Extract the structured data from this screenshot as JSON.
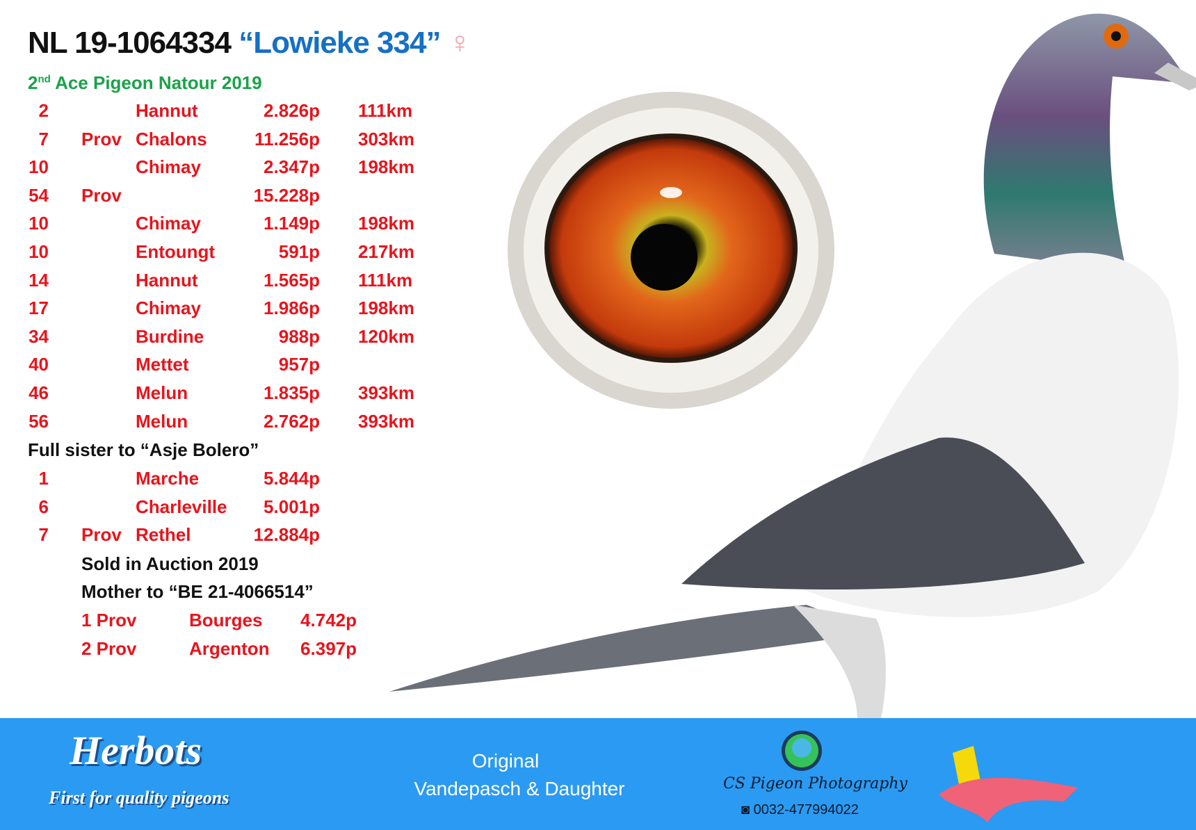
{
  "title": {
    "ring": "NL 19-1064334",
    "nickname": "“Lowieke 334”",
    "sex_symbol": "♀"
  },
  "subtitle": {
    "rank": "2",
    "rank_suffix": "nd",
    "text": "Ace Pigeon Natour 2019"
  },
  "results": [
    {
      "rank": "2",
      "level": "",
      "place": "Hannut",
      "points": "2.826p",
      "distance": "111km"
    },
    {
      "rank": "7",
      "level": "Prov",
      "place": "Chalons",
      "points": "11.256p",
      "distance": "303km"
    },
    {
      "rank": "10",
      "level": "",
      "place": "Chimay",
      "points": "2.347p",
      "distance": "198km"
    },
    {
      "rank": "54",
      "level": "Prov",
      "place": "",
      "points": "15.228p",
      "distance": ""
    },
    {
      "rank": "10",
      "level": "",
      "place": "Chimay",
      "points": "1.149p",
      "distance": "198km"
    },
    {
      "rank": "10",
      "level": "",
      "place": "Entoungt",
      "points": "591p",
      "distance": "217km"
    },
    {
      "rank": "14",
      "level": "",
      "place": "Hannut",
      "points": "1.565p",
      "distance": "111km"
    },
    {
      "rank": "17",
      "level": "",
      "place": "Chimay",
      "points": "1.986p",
      "distance": "198km"
    },
    {
      "rank": "34",
      "level": "",
      "place": "Burdine",
      "points": "988p",
      "distance": "120km"
    },
    {
      "rank": "40",
      "level": "",
      "place": "Mettet",
      "points": "957p",
      "distance": ""
    },
    {
      "rank": "46",
      "level": "",
      "place": "Melun",
      "points": "1.835p",
      "distance": "393km"
    },
    {
      "rank": "56",
      "level": "",
      "place": "Melun",
      "points": "2.762p",
      "distance": "393km"
    }
  ],
  "sister_label": "Full sister to “Asje Bolero”",
  "sister_results": [
    {
      "rank": "1",
      "level": "",
      "place": "Marche",
      "points": "5.844p"
    },
    {
      "rank": "6",
      "level": "",
      "place": "Charleville",
      "points": "5.001p"
    },
    {
      "rank": "7",
      "level": "Prov",
      "place": "Rethel",
      "points": "12.884p"
    }
  ],
  "auction_note": "Sold in Auction 2019",
  "mother_note": "Mother to “BE 21-4066514”",
  "offspring_results": [
    {
      "rank": "1 Prov",
      "place": "Bourges",
      "points": "4.742p"
    },
    {
      "rank": "2 Prov",
      "place": "Argenton",
      "points": "6.397p"
    }
  ],
  "footer": {
    "logo_text": "Herbots",
    "logo_tagline": "First for quality pigeons",
    "origin_label": "Original",
    "origin_breeder": "Vandepasch & Daughter",
    "photographer": "CS Pigeon Photography",
    "phone": "0032-477994022"
  },
  "colors": {
    "banner": "#2b9af3",
    "results": "#e8141c",
    "nickname": "#1670c4",
    "subtitle": "#1aa24a"
  }
}
